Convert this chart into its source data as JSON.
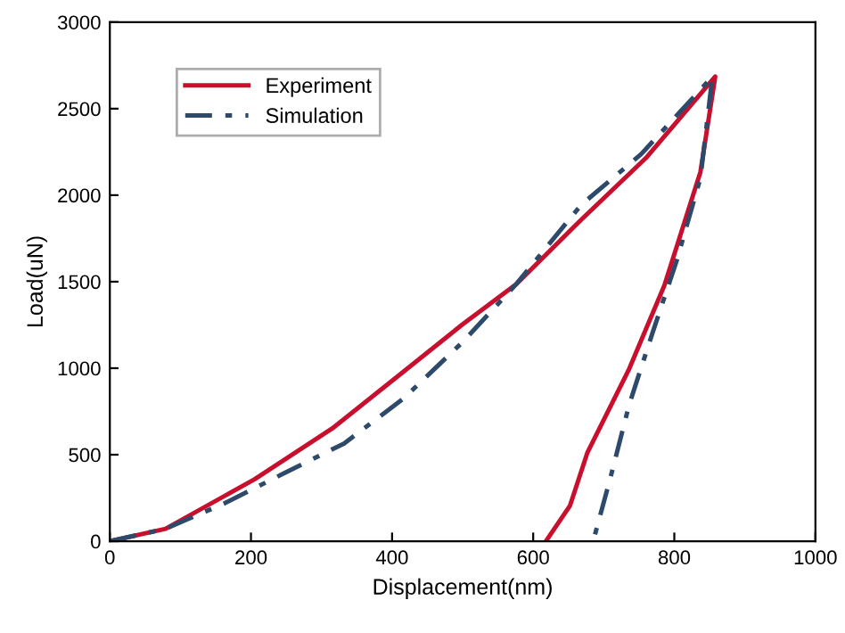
{
  "chart_data": {
    "type": "line",
    "xlabel": "Displacement(nm)",
    "ylabel": "Load(uN)",
    "xlim": [
      0,
      1000
    ],
    "xticks": [
      0,
      200,
      400,
      600,
      800,
      1000
    ],
    "ylim": [
      0,
      3000
    ],
    "yticks": [
      0,
      500,
      1000,
      1500,
      2000,
      2500,
      3000
    ],
    "grid": false,
    "legend": "top left",
    "marker": "none",
    "series": [
      {
        "name": "Experiment",
        "color": "#c8102e",
        "line_style": "solid",
        "x": [
          0,
          79,
          205,
          315,
          416,
          500,
          576,
          668,
          761,
          858,
          837,
          786,
          736,
          677,
          652,
          618
        ],
        "values": [
          0,
          72,
          358,
          651,
          979,
          1254,
          1486,
          1858,
          2220,
          2685,
          2134,
          1479,
          996,
          514,
          204,
          0
        ]
      },
      {
        "name": "Simulation",
        "color": "#2e4a6b",
        "line_style": "dashed",
        "x": [
          0,
          79,
          163,
          247,
          332,
          416,
          500,
          576,
          668,
          753,
          854,
          837,
          803,
          769,
          736,
          710,
          685
        ],
        "values": [
          0,
          72,
          220,
          393,
          565,
          824,
          1151,
          1486,
          1944,
          2237,
          2685,
          2099,
          1617,
          1203,
          789,
          375,
          0
        ]
      }
    ]
  }
}
